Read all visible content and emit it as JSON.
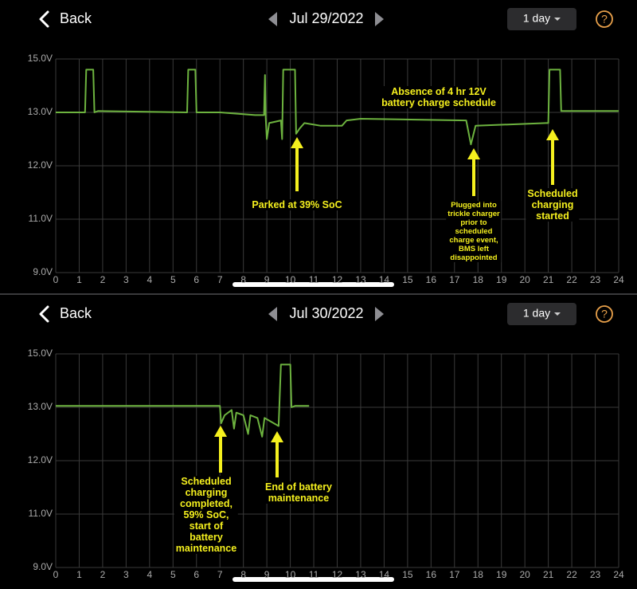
{
  "screens": [
    {
      "back": "Back",
      "date": "Jul 29/2022",
      "range": "1 day",
      "help": "?"
    },
    {
      "back": "Back",
      "date": "Jul 30/2022",
      "range": "1 day",
      "help": "?"
    }
  ],
  "chart_data": [
    {
      "type": "line",
      "color": "#6db33f",
      "grid": true,
      "xlim": [
        0,
        24
      ],
      "xticks": [
        0,
        1,
        2,
        3,
        4,
        5,
        6,
        7,
        8,
        9,
        10,
        11,
        12,
        13,
        14,
        15,
        16,
        17,
        18,
        19,
        20,
        21,
        22,
        23,
        24
      ],
      "ylim": [
        9,
        15
      ],
      "yticks": [
        {
          "value": 9,
          "label": "9.0V"
        },
        {
          "value": 11,
          "label": "11.0V"
        },
        {
          "value": 12,
          "label": "12.0V"
        },
        {
          "value": 13,
          "label": "13.0V"
        },
        {
          "value": 15,
          "label": "15.0V"
        }
      ],
      "x": [
        0,
        1.25,
        1.3,
        1.6,
        1.65,
        1.8,
        5.6,
        5.65,
        5.95,
        6.0,
        7.0,
        8.5,
        8.88,
        8.92,
        8.95,
        9.0,
        9.1,
        9.6,
        9.65,
        9.7,
        10.2,
        10.25,
        10.4,
        10.6,
        11.3,
        12.2,
        12.4,
        13.0,
        17.5,
        17.7,
        17.9,
        20.9,
        21.0,
        21.05,
        21.5,
        21.55,
        24
      ],
      "values": [
        13.0,
        13.0,
        14.6,
        14.6,
        13.0,
        13.05,
        13.0,
        14.6,
        14.6,
        13.0,
        13.0,
        12.95,
        12.95,
        14.4,
        12.9,
        12.5,
        12.8,
        12.85,
        12.5,
        14.6,
        14.6,
        12.6,
        12.7,
        12.8,
        12.75,
        12.75,
        12.85,
        12.88,
        12.85,
        12.4,
        12.75,
        12.8,
        12.8,
        14.6,
        14.6,
        13.05,
        13.05
      ],
      "annotations": [
        "Absence of 4 hr 12V\nbattery charge schedule",
        "Parked at 39% SoC",
        "Plugged into\ntrickle charger\nprior to\nscheduled\ncharge event,\nBMS left\ndisappointed",
        "Scheduled\ncharging\nstarted"
      ]
    },
    {
      "type": "line",
      "color": "#6db33f",
      "grid": true,
      "xlim": [
        0,
        24
      ],
      "xticks": [
        0,
        1,
        2,
        3,
        4,
        5,
        6,
        7,
        8,
        9,
        10,
        11,
        12,
        13,
        14,
        15,
        16,
        17,
        18,
        19,
        20,
        21,
        22,
        23,
        24
      ],
      "ylim": [
        9,
        15
      ],
      "yticks": [
        {
          "value": 9,
          "label": "9.0V"
        },
        {
          "value": 11,
          "label": "11.0V"
        },
        {
          "value": 12,
          "label": "12.0V"
        },
        {
          "value": 13,
          "label": "13.0V"
        },
        {
          "value": 15,
          "label": "15.0V"
        }
      ],
      "x": [
        0,
        2.0,
        7.0,
        7.05,
        7.2,
        7.5,
        7.6,
        7.7,
        8.0,
        8.2,
        8.3,
        8.6,
        8.8,
        8.9,
        9.3,
        9.5,
        9.6,
        10.0,
        10.05,
        10.2,
        10.8
      ],
      "values": [
        13.05,
        13.05,
        13.05,
        12.7,
        12.85,
        12.95,
        12.6,
        12.9,
        12.85,
        12.5,
        12.85,
        12.8,
        12.45,
        12.8,
        12.7,
        12.65,
        14.6,
        14.6,
        13.0,
        13.05,
        13.05
      ],
      "annotations": [
        "Scheduled\ncharging\ncompleted,\n59% SoC,\nstart of\nbattery\nmaintenance",
        "End of battery\nmaintenance"
      ]
    }
  ]
}
